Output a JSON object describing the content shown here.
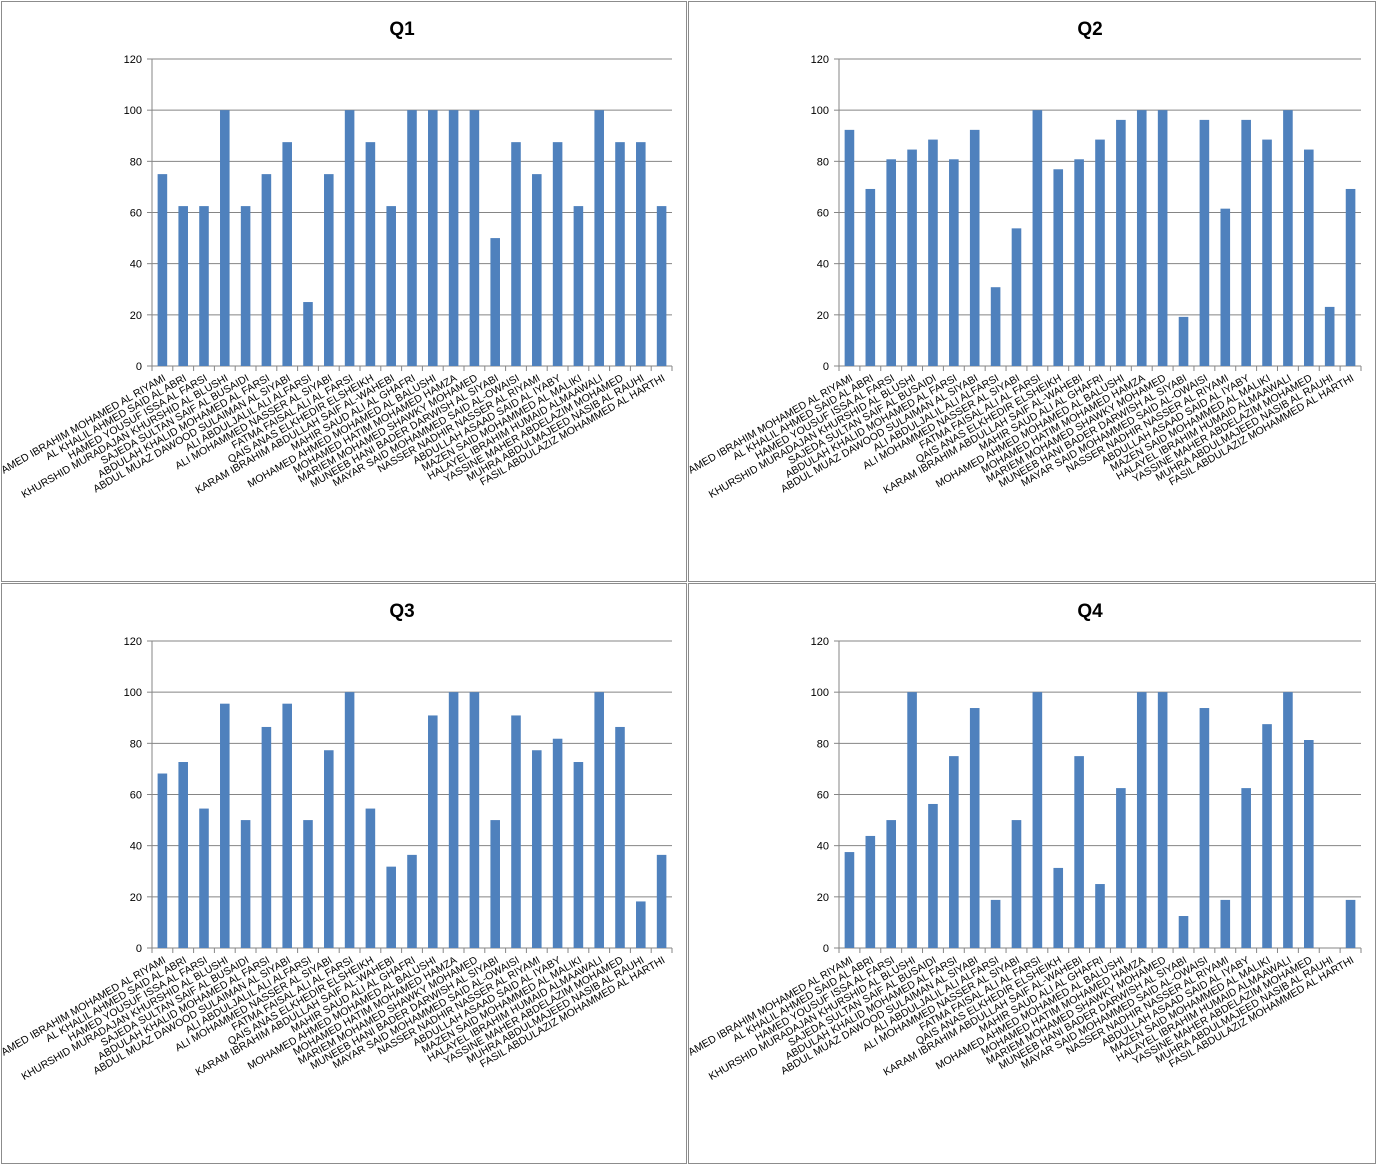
{
  "chart_data": [
    {
      "type": "bar",
      "title": "Q1",
      "ylim": [
        0,
        120
      ],
      "yticks": [
        "0",
        "20",
        "40",
        "60",
        "80",
        "100",
        "120"
      ],
      "grid": true,
      "bar_color": "#4f81bd",
      "categories": [
        "AMED IBRAHIM MOHAMED AL RIYAMI",
        "AL KHALIL AHMED SAID AL ABRI",
        "HAMED YOUSUF ISSA AL FARSI",
        "KHURSHID MURADAJAN KHURSHID AL BLUSHI",
        "SAJEDA SULTAN SAIF AL BUSAIDI",
        "ABDULAH KHALID MOHAMED AL FARSI",
        "ABDUL MUAZ DAWOOD SULAIMAN AL SIYABI",
        "ALI ABDULJALIL ALI ALFARSI",
        "ALI MOHAMMED NASSER AL SIYABI",
        "FATMA FAISAL ALI AL FARSI",
        "QAIS ANAS ELKHEDIR ELSHEIKH",
        "KARAM IBRAHIM ABDULLAH SAIF AL-WAHEBI",
        "MAHIR SAUD ALI AL GHAFRI",
        "MOHAMED AHMED MOHAMED AL BALUSHI",
        "MOHAMED HATIM MOHAMED HAMZA",
        "MARIEM MOHAMED SHAWKY MOHAMED",
        "MUNEEB HANI BADER DARWISH AL SIYABI",
        "MAYAR SAID MOHAMMED SAID AL-OWAISI",
        "NASSER NADHIR NASSER AL RIYAMI",
        "ABDULLAH ASAAD SAID AL IYABY",
        "MAZEN SAID MOHAMMED AL MALIKI",
        "HALAYEL IBRAHIM HUMAID ALMAAWALI",
        "YASSINE MAHER ABDELAZIM MOHAMED",
        "MUHRA ABDULMAJEED NASIB AL RAUHI",
        "FASIL ABDULAZIZ MOHAMMED AL HARTHI"
      ],
      "values": [
        75,
        62.5,
        62.5,
        100,
        62.5,
        75,
        87.5,
        25,
        75,
        100,
        87.5,
        62.5,
        100,
        100,
        100,
        100,
        50,
        87.5,
        75,
        87.5,
        62.5,
        100,
        87.5,
        87.5,
        62.5
      ]
    },
    {
      "type": "bar",
      "title": "Q2",
      "ylim": [
        0,
        120
      ],
      "yticks": [
        "0",
        "20",
        "40",
        "60",
        "80",
        "100",
        "120"
      ],
      "grid": true,
      "bar_color": "#4f81bd",
      "categories": [
        "AMED IBRAHIM MOHAMED AL RIYAMI",
        "AL KHALIL AHMED SAID AL ABRI",
        "HAMED YOUSUF ISSA AL FARSI",
        "KHURSHID MURADAJAN KHURSHID AL BLUSHI",
        "SAJEDA SULTAN SAIF AL BUSAIDI",
        "ABDULAH KHALID MOHAMED AL FARSI",
        "ABDUL MUAZ DAWOOD SULAIMAN AL SIYABI",
        "ALI ABDULJALIL ALI ALFARSI",
        "ALI MOHAMMED NASSER AL SIYABI",
        "FATMA FAISAL ALI AL FARSI",
        "QAIS ANAS ELKHEDIR ELSHEIKH",
        "KARAM IBRAHIM ABDULLAH SAIF AL-WAHEBI",
        "MAHIR SAUD ALI AL GHAFRI",
        "MOHAMED AHMED MOHAMED AL BALUSHI",
        "MOHAMED HATIM MOHAMED HAMZA",
        "MARIEM MOHAMED SHAWKY MOHAMED",
        "MUNEEB HANI BADER DARWISH AL SIYABI",
        "MAYAR SAID MOHAMMED SAID AL-OWAISI",
        "NASSER NADHIR NASSER AL RIYAMI",
        "ABDULLAH ASAAD SAID AL IYABY",
        "MAZEN SAID MOHAMMED AL MALIKI",
        "HALAYEL IBRAHIM HUMAID ALMAAWALI",
        "YASSINE MAHER ABDELAZIM MOHAMED",
        "MUHRA ABDULMAJEED NASIB AL RAUHI",
        "FASIL ABDULAZIZ MOHAMMED AL HARTHI"
      ],
      "values": [
        92.3,
        69.2,
        80.8,
        84.6,
        88.5,
        80.8,
        92.3,
        30.8,
        53.8,
        100,
        76.9,
        80.8,
        88.5,
        96.2,
        100,
        100,
        19.2,
        96.2,
        61.5,
        96.2,
        88.5,
        100,
        84.6,
        23.1,
        69.2
      ]
    },
    {
      "type": "bar",
      "title": "Q3",
      "ylim": [
        0,
        120
      ],
      "yticks": [
        "0",
        "20",
        "40",
        "60",
        "80",
        "100",
        "120"
      ],
      "grid": true,
      "bar_color": "#4f81bd",
      "categories": [
        "AMED IBRAHIM MOHAMED AL RIYAMI",
        "AL KHALIL AHMED SAID AL ABRI",
        "HAMED YOUSUF ISSA AL FARSI",
        "KHURSHID MURADAJAN KHURSHID AL BLUSHI",
        "SAJEDA SULTAN SAIF AL BUSAIDI",
        "ABDULAH KHALID MOHAMED AL FARSI",
        "ABDUL MUAZ DAWOOD SULAIMAN AL SIYABI",
        "ALI ABDULJALIL ALI ALFARSI",
        "ALI MOHAMMED NASSER AL SIYABI",
        "FATMA FAISAL ALI AL FARSI",
        "QAIS ANAS ELKHEDIR ELSHEIKH",
        "KARAM IBRAHIM ABDULLAH SAIF AL-WAHEBI",
        "MAHIR SAUD ALI AL GHAFRI",
        "MOHAMED AHMED MOHAMED AL BALUSHI",
        "MOHAMED HATIM MOHAMED HAMZA",
        "MARIEM MOHAMED SHAWKY MOHAMED",
        "MUNEEB HANI BADER DARWISH AL SIYABI",
        "MAYAR SAID MOHAMMED SAID AL-OWAISI",
        "NASSER NADHIR NASSER AL RIYAMI",
        "ABDULLAH ASAAD SAID AL IYABY",
        "MAZEN SAID MOHAMMED AL MALIKI",
        "HALAYEL IBRAHIM HUMAID ALMAAWALI",
        "YASSINE MAHER ABDELAZIM MOHAMED",
        "MUHRA ABDULMAJEED NASIB AL RAUHI",
        "FASIL ABDULAZIZ MOHAMMED AL HARTHI"
      ],
      "values": [
        68.2,
        72.7,
        54.5,
        95.5,
        50,
        86.4,
        95.5,
        50,
        77.3,
        100,
        54.5,
        31.8,
        36.4,
        90.9,
        100,
        100,
        50,
        90.9,
        77.3,
        81.8,
        72.7,
        100,
        86.4,
        18.2,
        36.4
      ]
    },
    {
      "type": "bar",
      "title": "Q4",
      "ylim": [
        0,
        120
      ],
      "yticks": [
        "0",
        "20",
        "40",
        "60",
        "80",
        "100",
        "120"
      ],
      "grid": true,
      "bar_color": "#4f81bd",
      "categories": [
        "AMED IBRAHIM MOHAMED AL RIYAMI",
        "AL KHALIL AHMED SAID AL ABRI",
        "HAMED YOUSUF ISSA AL FARSI",
        "KHURSHID MURADAJAN KHURSHID AL BLUSHI",
        "SAJEDA SULTAN SAIF AL BUSAIDI",
        "ABDULAH KHALID MOHAMED AL FARSI",
        "ABDUL MUAZ DAWOOD SULAIMAN AL SIYABI",
        "ALI ABDULJALIL ALI ALFARSI",
        "ALI MOHAMMED NASSER AL SIYABI",
        "FATMA FAISAL ALI AL FARSI",
        "QAIS ANAS ELKHEDIR ELSHEIKH",
        "KARAM IBRAHIM ABDULLAH SAIF AL-WAHEBI",
        "MAHIR SAUD ALI AL GHAFRI",
        "MOHAMED AHMED MOHAMED AL BALUSHI",
        "MOHAMED HATIM MOHAMED HAMZA",
        "MARIEM MOHAMED SHAWKY MOHAMED",
        "MUNEEB HANI BADER DARWISH AL SIYABI",
        "MAYAR SAID MOHAMMED SAID AL-OWAISI",
        "NASSER NADHIR NASSER AL RIYAMI",
        "ABDULLAH ASAAD SAID AL IYABY",
        "MAZEN SAID MOHAMMED AL MALIKI",
        "HALAYEL IBRAHIM HUMAID ALMAAWALI",
        "YASSINE MAHER ABDELAZIM MOHAMED",
        "MUHRA ABDULMAJEED NASIB AL RAUHI",
        "FASIL ABDULAZIZ MOHAMMED AL HARTHI"
      ],
      "values": [
        37.5,
        43.8,
        50,
        100,
        56.3,
        75,
        93.8,
        18.8,
        50,
        100,
        31.3,
        75,
        25,
        62.5,
        100,
        100,
        12.5,
        93.8,
        18.8,
        62.5,
        87.5,
        100,
        81.3,
        0,
        18.8
      ]
    }
  ]
}
